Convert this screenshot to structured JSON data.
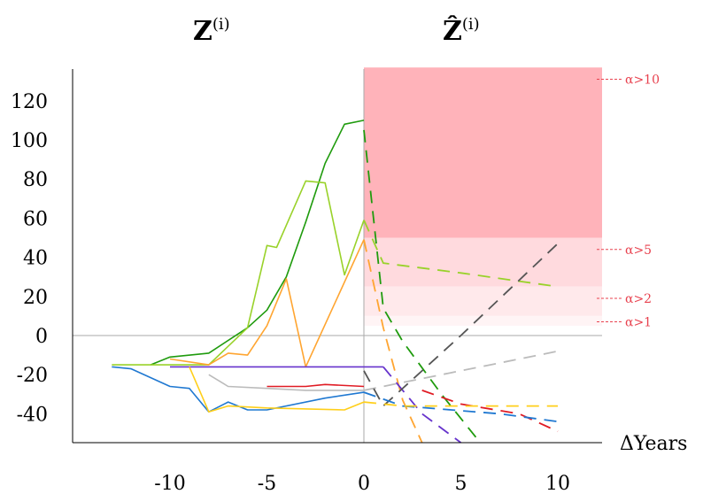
{
  "chart_data": {
    "type": "line",
    "titles": {
      "left": "Z",
      "left_superscript": "(i)",
      "right": "Ẑ",
      "right_superscript": "(i)"
    },
    "xlabel": "ΔYears",
    "ylabel": "",
    "xlim": [
      -15,
      12
    ],
    "ylim": [
      -55,
      137
    ],
    "x_ticks": [
      {
        "value": -10,
        "label": "-10"
      },
      {
        "value": -5,
        "label": "-5"
      },
      {
        "value": 0,
        "label": "0"
      },
      {
        "value": 5,
        "label": "5"
      },
      {
        "value": 10,
        "label": "10"
      }
    ],
    "y_ticks": [
      {
        "value": 120,
        "label": "120"
      },
      {
        "value": 100,
        "label": "100"
      },
      {
        "value": 80,
        "label": "80"
      },
      {
        "value": 60,
        "label": "60"
      },
      {
        "value": 40,
        "label": "40"
      },
      {
        "value": 20,
        "label": "20"
      },
      {
        "value": 0,
        "label": "0"
      },
      {
        "value": -20,
        "label": "-20"
      },
      {
        "value": -40,
        "label": "-40"
      }
    ],
    "zones": [
      {
        "label": "α>10",
        "from": 50,
        "to": 137,
        "color": "#ffb3ba",
        "label_value": 131
      },
      {
        "label": "α>5",
        "from": 25,
        "to": 50,
        "color": "#ffdade",
        "label_value": 44
      },
      {
        "label": "α>2",
        "from": 10,
        "to": 25,
        "color": "#ffe9eb",
        "label_value": 19
      },
      {
        "label": "α>1",
        "from": 5,
        "to": 10,
        "color": "#fff4f5",
        "label_value": 7
      }
    ],
    "zone_label_color": "#e8424f",
    "series": [
      {
        "color": "#1f9b0d",
        "observed": [
          [
            -11,
            -15
          ],
          [
            -10,
            -11
          ],
          [
            -8,
            -9
          ],
          [
            -6,
            4
          ],
          [
            -5,
            13
          ],
          [
            -4,
            30
          ],
          [
            -3,
            58
          ],
          [
            -2,
            88
          ],
          [
            -1,
            108
          ],
          [
            0,
            110
          ]
        ],
        "predicted": [
          [
            0,
            105
          ],
          [
            1,
            14
          ],
          [
            2,
            -3
          ],
          [
            4,
            -30
          ],
          [
            6,
            -55
          ]
        ]
      },
      {
        "color": "#99d22a",
        "observed": [
          [
            -13,
            -15
          ],
          [
            -9,
            -15
          ],
          [
            -8,
            -15
          ],
          [
            -6,
            4
          ],
          [
            -5,
            46
          ],
          [
            -4.5,
            45
          ],
          [
            -3,
            79
          ],
          [
            -2,
            78
          ],
          [
            -1,
            31
          ],
          [
            0,
            59
          ]
        ],
        "predicted": [
          [
            0,
            59
          ],
          [
            1,
            37
          ],
          [
            5,
            32
          ],
          [
            10,
            25
          ]
        ]
      },
      {
        "color": "#ffa531",
        "observed": [
          [
            -10,
            -12
          ],
          [
            -8,
            -15
          ],
          [
            -7,
            -9
          ],
          [
            -6,
            -10
          ],
          [
            -5,
            5
          ],
          [
            -4,
            29
          ],
          [
            -3,
            -16
          ],
          [
            0,
            49
          ]
        ],
        "predicted": [
          [
            0,
            49
          ],
          [
            1,
            4
          ],
          [
            2,
            -33
          ],
          [
            3,
            -55
          ]
        ]
      },
      {
        "color": "#6633cc",
        "observed": [
          [
            -10,
            -16
          ],
          [
            -6,
            -16
          ],
          [
            -3,
            -16
          ],
          [
            0,
            -16
          ],
          [
            1,
            -16
          ]
        ],
        "predicted": [
          [
            1,
            -16
          ],
          [
            3,
            -40
          ],
          [
            5,
            -55
          ]
        ]
      },
      {
        "color": "#bbbbbb",
        "observed": [
          [
            -8,
            -20
          ],
          [
            -7,
            -26
          ],
          [
            -5,
            -27
          ],
          [
            -3,
            -28
          ],
          [
            0,
            -28
          ]
        ],
        "predicted": [
          [
            0,
            -28
          ],
          [
            2,
            -24
          ],
          [
            6,
            -16
          ],
          [
            10,
            -8
          ]
        ]
      },
      {
        "color": "#555555",
        "observed": [],
        "predicted": [
          [
            0,
            -18
          ],
          [
            1,
            -36
          ],
          [
            5,
            0
          ],
          [
            10,
            47
          ]
        ]
      },
      {
        "color": "#e01b24",
        "observed": [
          [
            -5,
            -26
          ],
          [
            -3,
            -26
          ],
          [
            -2,
            -25
          ],
          [
            0,
            -26
          ]
        ],
        "predicted": [
          [
            3,
            -28
          ],
          [
            5,
            -35
          ],
          [
            8,
            -40
          ],
          [
            10,
            -49
          ]
        ]
      },
      {
        "color": "#1f78d1",
        "observed": [
          [
            -13,
            -16
          ],
          [
            -12,
            -17
          ],
          [
            -10,
            -26
          ],
          [
            -9,
            -27
          ],
          [
            -8,
            -39
          ],
          [
            -7,
            -34
          ],
          [
            -6,
            -38
          ],
          [
            -5,
            -38
          ],
          [
            -2,
            -32
          ],
          [
            0,
            -29
          ]
        ],
        "predicted": [
          [
            0,
            -29
          ],
          [
            2,
            -36
          ],
          [
            7,
            -40
          ],
          [
            10,
            -44
          ]
        ]
      },
      {
        "color": "#ffcf1a",
        "observed": [
          [
            -9,
            -16
          ],
          [
            -8,
            -39
          ],
          [
            -7,
            -36
          ],
          [
            -5,
            -37
          ],
          [
            -1,
            -38
          ],
          [
            0,
            -34
          ]
        ],
        "predicted": [
          [
            0,
            -34
          ],
          [
            2,
            -36
          ],
          [
            10,
            -36
          ]
        ]
      }
    ]
  }
}
